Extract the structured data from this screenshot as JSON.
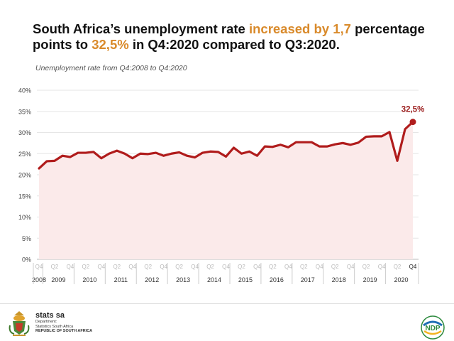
{
  "headline": {
    "part1": "South Africa’s unemployment rate ",
    "highlight1": "increased by 1,7",
    "part2": " percentage points to ",
    "highlight2": "32,5%",
    "part3": " in Q4:2020 compared to Q3:2020."
  },
  "subtitle": "Unemployment rate from Q4:2008 to Q4:2020",
  "footer": {
    "brand": "stats sa",
    "line1": "Department:",
    "line2": "Statistics South Africa",
    "line3": "REPUBLIC OF SOUTH AFRICA",
    "ndp_label": "NDP"
  },
  "colors": {
    "line": "#b01c1c",
    "fill": "#fbeaea",
    "highlight": "#d98a2b",
    "annotation": "#9b1c1c"
  },
  "chart_data": {
    "type": "line",
    "title": "",
    "xlabel": "",
    "ylabel": "",
    "ylim": [
      0,
      40
    ],
    "yticks": [
      0,
      5,
      10,
      15,
      20,
      25,
      30,
      35,
      40
    ],
    "ytick_labels": [
      "0%",
      "5%",
      "10%",
      "15%",
      "20%",
      "25%",
      "30%",
      "35%",
      "40%"
    ],
    "grid": true,
    "series": [
      {
        "values": [
          21.5,
          23.2,
          23.3,
          24.5,
          24.2,
          25.2,
          25.2,
          25.4,
          23.9,
          25.0,
          25.7,
          25.0,
          23.9,
          25.0,
          24.9,
          25.2,
          24.5,
          25.0,
          25.3,
          24.5,
          24.1,
          25.2,
          25.5,
          25.4,
          24.3,
          26.4,
          25.0,
          25.5,
          24.5,
          26.7,
          26.6,
          27.1,
          26.5,
          27.7,
          27.7,
          27.7,
          26.7,
          26.7,
          27.2,
          27.5,
          27.1,
          27.6,
          29.0,
          29.1,
          29.1,
          30.1,
          23.3,
          30.8,
          32.5
        ]
      }
    ],
    "quarter_labels": [
      "Q4",
      "Q2",
      "Q4",
      "Q2",
      "Q4",
      "Q2",
      "Q4",
      "Q2",
      "Q4",
      "Q2",
      "Q4",
      "Q2",
      "Q4",
      "Q2",
      "Q4",
      "Q2",
      "Q4",
      "Q2",
      "Q4",
      "Q2",
      "Q4",
      "Q2",
      "Q4",
      "Q2",
      "Q4"
    ],
    "last_quarter_label": "Q4",
    "years": [
      "2008",
      "2009",
      "2010",
      "2011",
      "2012",
      "2013",
      "2014",
      "2015",
      "2016",
      "2017",
      "2018",
      "2019",
      "2020"
    ],
    "annotation": "32,5%"
  }
}
